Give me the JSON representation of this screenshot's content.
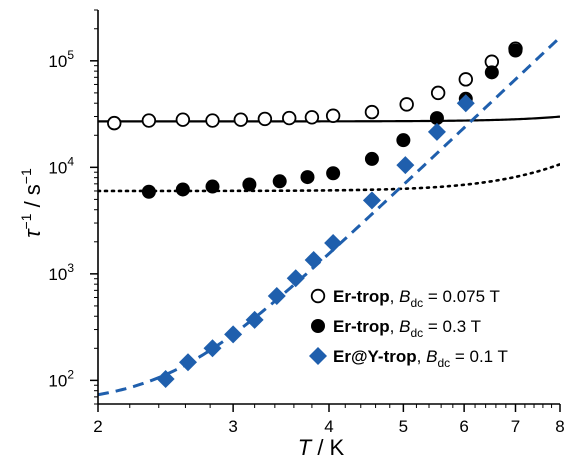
{
  "chart_data": {
    "type": "scatter",
    "xscale": "log",
    "yscale": "log",
    "xlim": [
      2,
      8
    ],
    "ylim": [
      60,
      300000
    ],
    "xlabel": {
      "symbol": "T",
      "unit": " / K"
    },
    "ylabel": {
      "symbol": "τ",
      "sup1": "−1",
      "unit": " / s",
      "sup2": "−1"
    },
    "xticks": [
      {
        "value": 2,
        "label": "2"
      },
      {
        "value": 3,
        "label": "3"
      },
      {
        "value": 4,
        "label": "4"
      },
      {
        "value": 5,
        "label": "5"
      },
      {
        "value": 6,
        "label": "6"
      },
      {
        "value": 7,
        "label": "7"
      },
      {
        "value": 8,
        "label": "8"
      }
    ],
    "yticks": [
      {
        "value": 100,
        "base": "10",
        "exp": "2"
      },
      {
        "value": 1000,
        "base": "10",
        "exp": "3"
      },
      {
        "value": 10000,
        "base": "10",
        "exp": "4"
      },
      {
        "value": 100000,
        "base": "10",
        "exp": "5"
      }
    ],
    "grid": false,
    "legend_position": "bottom-right",
    "series": [
      {
        "name": "Er-trop",
        "bdc_symbol": "B",
        "bdc_sub": "dc",
        "bdc_value": " = 0.075 T",
        "marker": "open-circle",
        "color": "#000000",
        "fit_style": "solid",
        "x": [
          2.1,
          2.33,
          2.58,
          2.82,
          3.07,
          3.3,
          3.55,
          3.8,
          4.05,
          4.55,
          5.05,
          5.55,
          6.03,
          6.52,
          7.0
        ],
        "y": [
          26000,
          27500,
          28000,
          27500,
          28000,
          28500,
          29000,
          29500,
          30500,
          33000,
          39000,
          50000,
          67000,
          98000,
          130000
        ]
      },
      {
        "name": "Er-trop",
        "bdc_symbol": "B",
        "bdc_sub": "dc",
        "bdc_value": " = 0.3 T",
        "marker": "filled-circle",
        "color": "#000000",
        "fit_style": "dotted",
        "x": [
          2.33,
          2.58,
          2.82,
          3.15,
          3.45,
          3.75,
          4.05,
          4.55,
          5.0,
          5.53,
          6.03,
          6.52,
          7.0
        ],
        "y": [
          5900,
          6200,
          6600,
          6900,
          7400,
          8100,
          8800,
          12000,
          18000,
          29000,
          44000,
          78000,
          125000
        ]
      },
      {
        "name": "Er@Y-trop",
        "bdc_symbol": "B",
        "bdc_sub": "dc",
        "bdc_value": " = 0.1 T",
        "marker": "diamond",
        "color": "#1f5fad",
        "fit_style": "dashed",
        "x": [
          2.45,
          2.62,
          2.82,
          3.0,
          3.2,
          3.42,
          3.62,
          3.82,
          4.05,
          4.55,
          5.03,
          5.53,
          6.03
        ],
        "y": [
          103,
          148,
          200,
          270,
          370,
          620,
          910,
          1350,
          1950,
          4900,
          10500,
          21500,
          40000
        ]
      }
    ]
  },
  "fit_params": {
    "solid": {
      "a": 27000,
      "b": 0.006,
      "n": 6.3
    },
    "dotted": {
      "a": 6000,
      "b": 0.022,
      "n": 5.9
    },
    "dashed": {
      "a": 60,
      "b": 0.12,
      "n": 6.8
    }
  }
}
